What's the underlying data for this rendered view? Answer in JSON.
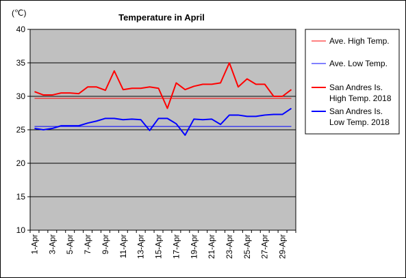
{
  "chart_data": {
    "type": "line",
    "title": "Temperature in April",
    "ylabel": "(℃)",
    "xlabel": "",
    "ylim": [
      10,
      40
    ],
    "yticks": [
      10,
      15,
      20,
      25,
      30,
      35,
      40
    ],
    "grid": true,
    "plot_background": "#c0c0c0",
    "legend_position": "right",
    "categories": [
      "1-Apr",
      "2-Apr",
      "3-Apr",
      "4-Apr",
      "5-Apr",
      "6-Apr",
      "7-Apr",
      "8-Apr",
      "9-Apr",
      "10-Apr",
      "11-Apr",
      "12-Apr",
      "13-Apr",
      "14-Apr",
      "15-Apr",
      "16-Apr",
      "17-Apr",
      "18-Apr",
      "19-Apr",
      "20-Apr",
      "21-Apr",
      "22-Apr",
      "23-Apr",
      "24-Apr",
      "25-Apr",
      "26-Apr",
      "27-Apr",
      "28-Apr",
      "29-Apr",
      "30-Apr"
    ],
    "tick_labels": [
      "1-Apr",
      "3-Apr",
      "5-Apr",
      "7-Apr",
      "9-Apr",
      "11-Apr",
      "13-Apr",
      "15-Apr",
      "17-Apr",
      "19-Apr",
      "21-Apr",
      "23-Apr",
      "25-Apr",
      "27-Apr",
      "29-Apr"
    ],
    "series": [
      {
        "name": "Ave. High Temp.",
        "color": "#ff0000",
        "width": 1,
        "values": [
          29.7,
          29.7,
          29.7,
          29.7,
          29.7,
          29.7,
          29.7,
          29.7,
          29.7,
          29.7,
          29.7,
          29.7,
          29.7,
          29.7,
          29.7,
          29.7,
          29.7,
          29.7,
          29.7,
          29.7,
          29.7,
          29.7,
          29.7,
          29.7,
          29.7,
          29.7,
          29.7,
          29.7,
          29.7,
          29.7
        ]
      },
      {
        "name": "Ave. Low Temp.",
        "color": "#0000ff",
        "width": 1,
        "values": [
          25.5,
          25.5,
          25.5,
          25.5,
          25.5,
          25.5,
          25.5,
          25.5,
          25.5,
          25.5,
          25.5,
          25.5,
          25.5,
          25.5,
          25.5,
          25.5,
          25.5,
          25.5,
          25.5,
          25.5,
          25.5,
          25.5,
          25.5,
          25.5,
          25.5,
          25.5,
          25.5,
          25.5,
          25.5,
          25.5
        ]
      },
      {
        "name": "San Andres Is. High Temp. 2018",
        "legend_lines": [
          "San Andres Is.",
          "High Temp. 2018"
        ],
        "color": "#ff0000",
        "width": 2,
        "values": [
          30.7,
          30.2,
          30.2,
          30.5,
          30.5,
          30.4,
          31.4,
          31.4,
          30.9,
          33.8,
          31.0,
          31.2,
          31.2,
          31.4,
          31.2,
          28.2,
          32.0,
          31.0,
          31.5,
          31.8,
          31.8,
          32.0,
          35.0,
          31.4,
          32.6,
          31.8,
          31.8,
          30.0,
          30.0,
          31.0
        ]
      },
      {
        "name": "San Andres Is. Low Temp. 2018",
        "legend_lines": [
          "San Andres Is.",
          "Low Temp. 2018"
        ],
        "color": "#0000ff",
        "width": 2,
        "values": [
          25.2,
          25.0,
          25.2,
          25.6,
          25.6,
          25.6,
          26.0,
          26.3,
          26.7,
          26.7,
          26.5,
          26.6,
          26.5,
          24.9,
          26.7,
          26.7,
          25.9,
          24.2,
          26.6,
          26.5,
          26.6,
          25.8,
          27.2,
          27.2,
          27.0,
          27.0,
          27.2,
          27.3,
          27.3,
          28.2
        ]
      }
    ]
  }
}
